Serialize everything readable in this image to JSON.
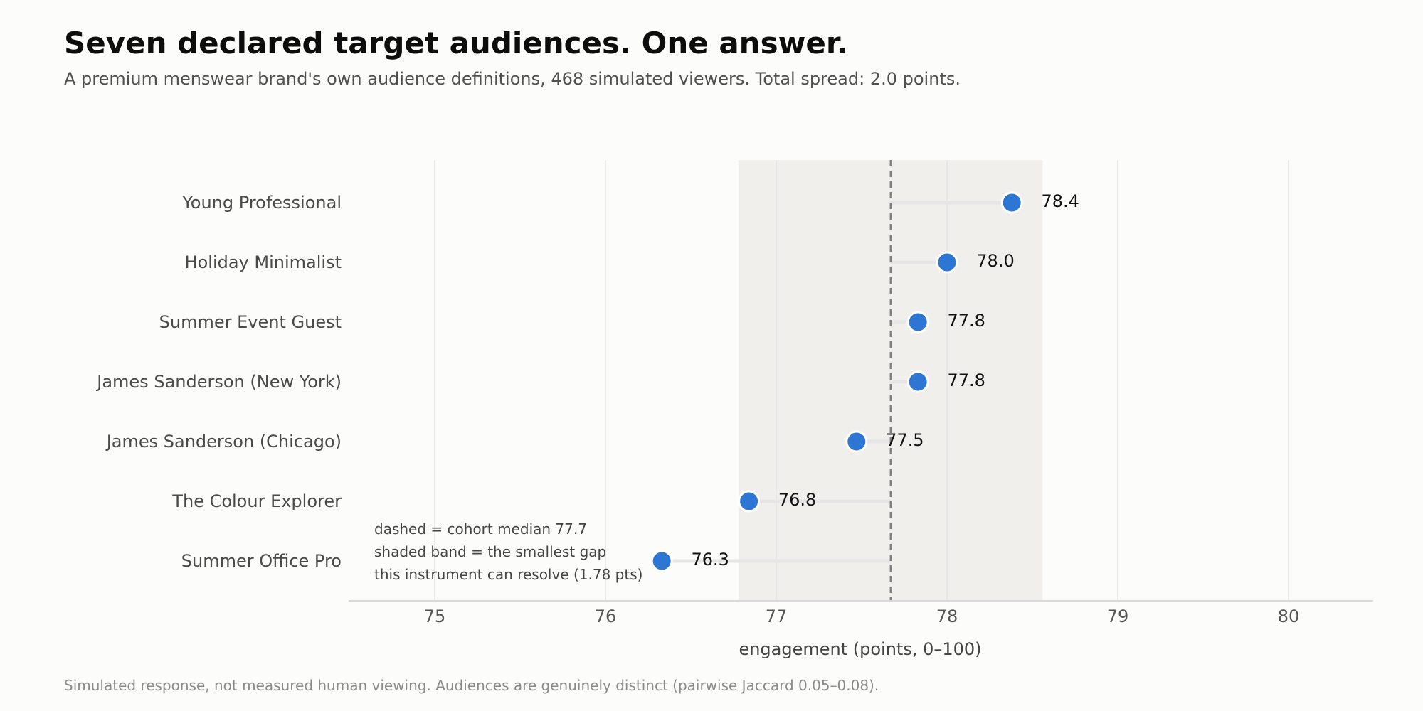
{
  "header": {
    "title": "Seven declared target audiences. One answer.",
    "subtitle": "A premium menswear brand's own audience definitions, 468 simulated viewers. Total spread: 2.0 points."
  },
  "footer": {
    "note": "Simulated response, not measured human viewing. Audiences are genuinely distinct (pairwise Jaccard 0.05–0.08)."
  },
  "chart_data": {
    "type": "scatter",
    "subtype": "dot-plot",
    "title": "Seven declared target audiences. One answer.",
    "xlabel": "engagement (points, 0–100)",
    "ylabel": "",
    "xlim": [
      74.5,
      80.5
    ],
    "xticks": [
      75,
      76,
      77,
      78,
      79,
      80
    ],
    "xtick_labels": [
      "75",
      "76",
      "77",
      "78",
      "79",
      "80"
    ],
    "grid": "vertical",
    "categories": [
      "Young Professional",
      "Holiday Minimalist",
      "Summer Event Guest",
      "James Sanderson (New York)",
      "James Sanderson (Chicago)",
      "The Colour Explorer",
      "Summer Office Pro"
    ],
    "values": [
      78.38,
      78.0,
      77.83,
      77.83,
      77.47,
      76.84,
      76.33
    ],
    "value_labels": [
      "78.4",
      "78.0",
      "77.8",
      "77.8",
      "77.5",
      "76.8",
      "76.3"
    ],
    "median": 77.67,
    "band": [
      76.78,
      78.56
    ],
    "annotation": [
      "dashed = cohort median 77.7",
      "shaded band = the smallest gap",
      "this instrument can resolve (1.78 pts)"
    ],
    "colors": {
      "dot": "#2d76d4",
      "dot_edge": "#ffffff",
      "band": "#f0efec",
      "median_line": "#808080",
      "stem": "#e6e6e6",
      "grid": "#e3e3e3",
      "axis": "#d9d9d9"
    }
  }
}
